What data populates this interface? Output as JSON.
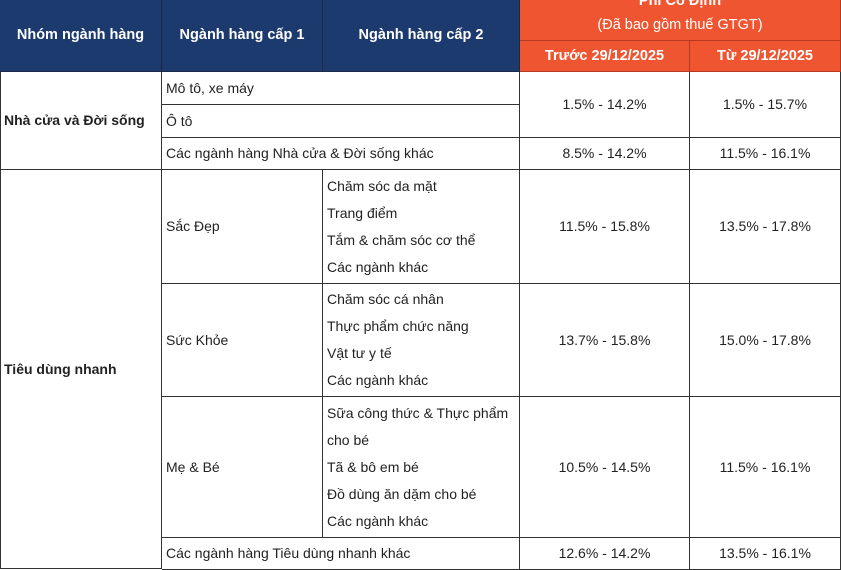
{
  "header": {
    "col_group": "Nhóm ngành hàng",
    "col_level1": "Ngành hàng cấp 1",
    "col_level2": "Ngành hàng cấp 2",
    "fee_title": "Phí Cố Định",
    "fee_subtitle": "(Đã bao gồm thuế GTGT)",
    "col_before": "Trước 29/12/2025",
    "col_from": "Từ 29/12/2025"
  },
  "rows": {
    "home": {
      "group": "Nhà cửa và Đời sống",
      "moto": "Mô tô, xe máy",
      "car": "Ô tô",
      "vehicles_before": "1.5% - 14.2%",
      "vehicles_from": "1.5% - 15.7%",
      "other": "Các ngành hàng Nhà cửa & Đời sống khác",
      "other_before": "8.5% - 14.2%",
      "other_from": "11.5% - 16.1%"
    },
    "fmcg": {
      "group": "Tiêu dùng nhanh",
      "beauty": {
        "name": "Sắc Đẹp",
        "sub": [
          "Chăm sóc da mặt",
          "Trang điểm",
          "Tắm & chăm sóc cơ thể",
          "Các ngành khác"
        ],
        "before": "11.5% - 15.8%",
        "from": "13.5% - 17.8%"
      },
      "health": {
        "name": "Sức Khỏe",
        "sub": [
          "Chăm sóc cá nhân",
          "Thực phẩm chức năng",
          "Vật tư y tế",
          "Các ngành khác"
        ],
        "before": "13.7% - 15.8%",
        "from": "15.0% - 17.8%"
      },
      "baby": {
        "name": "Mẹ & Bé",
        "sub": [
          "Sữa công thức & Thực phẩm",
          "cho bé",
          "Tã & bô em bé",
          "Đồ dùng ăn dặm cho bé",
          "Các ngành khác"
        ],
        "before": "10.5% - 14.5%",
        "from": "11.5% - 16.1%"
      },
      "other": "Các ngành hàng Tiêu dùng nhanh khác",
      "other_before": "12.6% - 14.2%",
      "other_from": "13.5% - 16.1%"
    }
  },
  "colors": {
    "navy": "#1c3a6e",
    "orange": "#ee5530"
  }
}
